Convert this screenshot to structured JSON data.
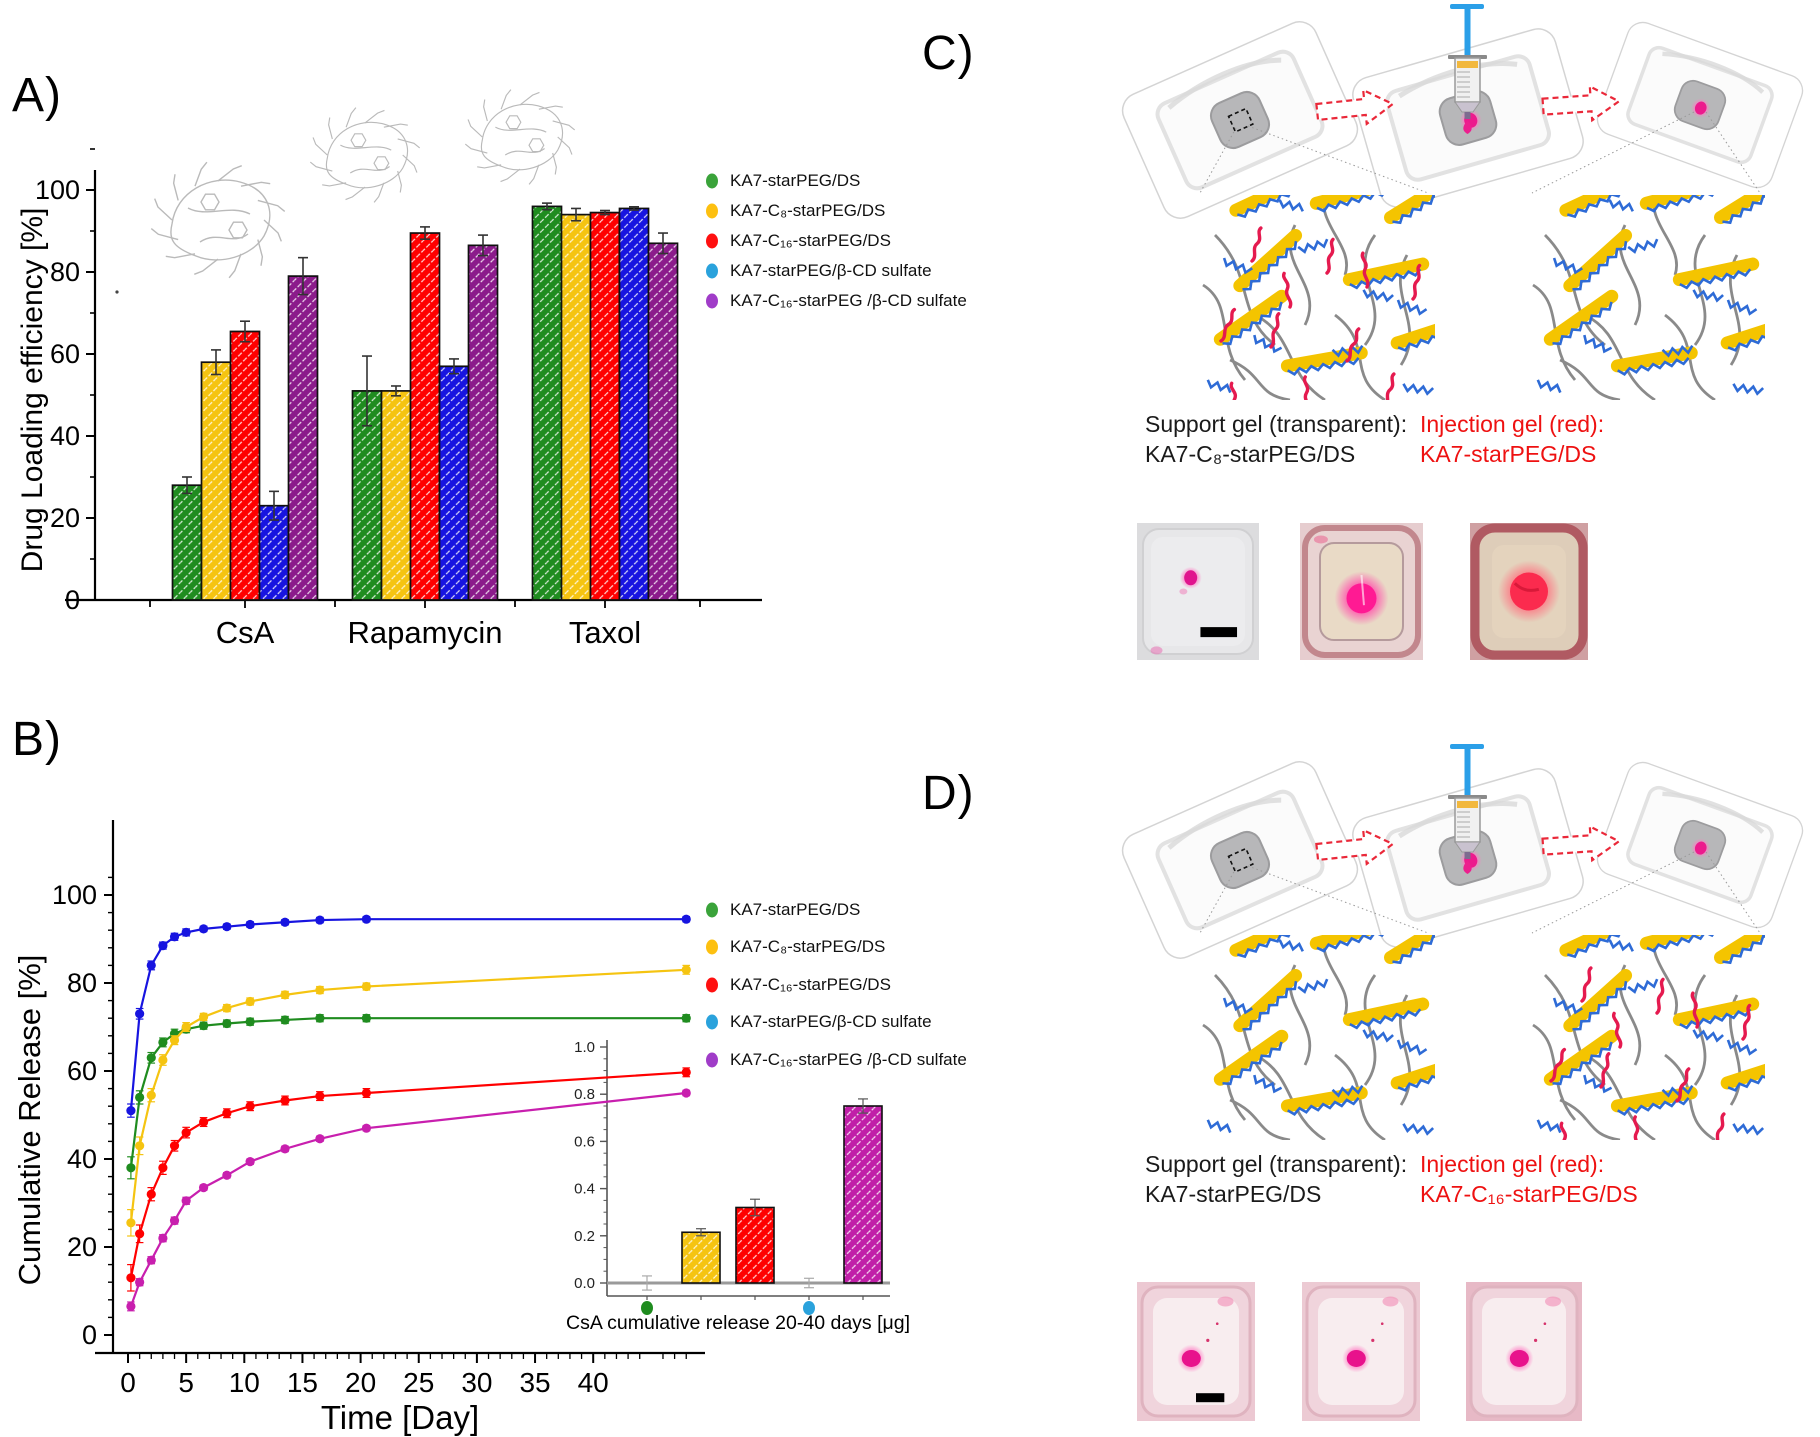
{
  "page": {
    "background": "#ffffff"
  },
  "panels": {
    "a": {
      "label": "A)"
    },
    "b": {
      "label": "B)"
    },
    "c": {
      "label": "C)",
      "support_gel_title": "Support gel (transparent):",
      "support_gel_name": "KA7-C₈-starPEG/DS",
      "injection_gel_title": "Injection gel (red):",
      "injection_gel_name": "KA7-starPEG/DS",
      "injection_text_color": "#ee1111"
    },
    "d": {
      "label": "D)",
      "support_gel_title": "Support gel (transparent):",
      "support_gel_name": "KA7-starPEG/DS",
      "injection_gel_title": "Injection gel (red):",
      "injection_gel_name": "KA7-C₁₆-starPEG/DS",
      "injection_text_color": "#ee1111"
    }
  },
  "chart_data": [
    {
      "id": "panelA",
      "type": "bar",
      "title": "",
      "xlabel": "",
      "ylabel": "Drug Loading efficiency [%]",
      "ylim": [
        0,
        112
      ],
      "yticks": [
        0,
        20,
        40,
        60,
        80,
        100
      ],
      "grid": false,
      "legend_position": "right",
      "categories": [
        "CsA",
        "Rapamycin",
        "Taxol"
      ],
      "series": [
        {
          "name": "KA7-starPEG/DS",
          "color": "#1f8c1f",
          "dot": "#3aa33a",
          "values": [
            28,
            51,
            96
          ],
          "errors": [
            2,
            8.5,
            0.8
          ]
        },
        {
          "name": "KA7-C₈-starPEG/DS",
          "color": "#f5c411",
          "dot": "#fdc010",
          "values": [
            58,
            51,
            94
          ],
          "errors": [
            3,
            1.2,
            1.5
          ]
        },
        {
          "name": "KA7-C₁₆-starPEG/DS",
          "color": "#ff0000",
          "dot": "#ff1010",
          "values": [
            65.5,
            89.5,
            94.5
          ],
          "errors": [
            2.5,
            1.5,
            0.5
          ]
        },
        {
          "name": "KA7-starPEG/β-CD sulfate",
          "color": "#1714e0",
          "dot": "#2aa2dc",
          "values": [
            23,
            57,
            95.5
          ],
          "errors": [
            3.5,
            1.8,
            0.4
          ]
        },
        {
          "name": "KA7-C₁₆-starPEG /β-CD sulfate",
          "color": "#8b1b8b",
          "dot": "#a03cc8",
          "values": [
            79,
            86.5,
            87
          ],
          "errors": [
            4.5,
            2.5,
            2.5
          ]
        }
      ]
    },
    {
      "id": "panelB",
      "type": "line",
      "xlabel": "Time [Day]",
      "ylabel": "Cumulative Release [%]",
      "xlim": [
        -1.5,
        49.5
      ],
      "ylim": [
        0,
        105
      ],
      "xticks": [
        0,
        5,
        10,
        15,
        20,
        25,
        30,
        35,
        40
      ],
      "yticks": [
        0,
        20,
        40,
        60,
        80,
        100
      ],
      "grid": false,
      "legend_position": "right",
      "x": [
        0.25,
        1,
        2,
        3,
        4,
        5,
        6.5,
        8.5,
        10.5,
        13.5,
        16.5,
        20.5,
        48
      ],
      "series": [
        {
          "name": "KA7-starPEG/DS",
          "color": "#1f8c1f",
          "dot": "#3aa33a",
          "values": [
            38,
            54,
            63,
            66.5,
            68.5,
            69.5,
            70.3,
            70.8,
            71.2,
            71.6,
            72,
            72,
            72
          ],
          "errors": [
            2.5,
            1.5,
            1.2,
            1,
            1,
            0.8,
            0.8,
            0.8,
            0.8,
            0.8,
            0.8,
            0.8,
            0.8
          ]
        },
        {
          "name": "KA7-C₈-starPEG/DS",
          "color": "#f5c411",
          "dot": "#fdc010",
          "values": [
            25.5,
            43,
            54.5,
            62.5,
            67,
            70,
            72.3,
            74.3,
            75.8,
            77.3,
            78.4,
            79.2,
            83
          ],
          "errors": [
            3,
            2,
            1.5,
            1.2,
            1,
            1,
            0.8,
            0.8,
            0.8,
            0.8,
            0.8,
            0.8,
            1
          ]
        },
        {
          "name": "KA7-C₁₆-starPEG/DS",
          "color": "#ff0000",
          "dot": "#ff1010",
          "values": [
            13,
            23,
            32,
            38,
            43,
            46,
            48.4,
            50.4,
            52,
            53.3,
            54.3,
            55,
            59.7
          ],
          "errors": [
            3,
            2,
            1.5,
            1.5,
            1.2,
            1.2,
            1,
            1,
            1,
            1,
            1,
            1,
            1
          ]
        },
        {
          "name": "KA7-starPEG/β-CD sulfate",
          "color": "#1714e0",
          "dot": "#2aa2dc",
          "values": [
            51,
            73,
            84,
            88.5,
            90.5,
            91.5,
            92.3,
            92.8,
            93.3,
            93.8,
            94.3,
            94.5,
            94.5
          ],
          "errors": [
            1.5,
            1.2,
            1,
            0.8,
            0.8,
            0.8,
            0.6,
            0.6,
            0.6,
            0.6,
            0.6,
            0.6,
            0.6
          ]
        },
        {
          "name": "KA7-C₁₆-starPEG /β-CD sulfate",
          "color": "#c81fae",
          "dot": "#a03cc8",
          "values": [
            6.5,
            12,
            17,
            22,
            26,
            30.5,
            33.5,
            36.3,
            39.4,
            42.3,
            44.6,
            47,
            55
          ],
          "errors": [
            1,
            0.8,
            0.8,
            0.8,
            0.8,
            0.8,
            0.6,
            0.6,
            0.6,
            0.6,
            0.6,
            0.6,
            0.6
          ]
        }
      ],
      "inset": {
        "type": "bar",
        "caption": "CsA cumulative release 20-40 days [μg]",
        "ylim": [
          -0.07,
          1.0
        ],
        "yticks": [
          "0.0",
          "0.2",
          "0.4",
          "0.6",
          "0.8",
          "1.0"
        ],
        "bars": [
          {
            "name": "KA7-starPEG/DS",
            "color": "#1f8c1f",
            "value": 0.0,
            "err": 0.03,
            "marker_below": true
          },
          {
            "name": "KA7-C₈-starPEG/DS",
            "color": "#f5c411",
            "value": 0.215,
            "err": 0.015,
            "marker_below": false
          },
          {
            "name": "KA7-C₁₆-starPEG/DS",
            "color": "#ff0000",
            "value": 0.32,
            "err": 0.035,
            "marker_below": false
          },
          {
            "name": "KA7-starPEG/β-CD sulfate",
            "color": "#2aa2dc",
            "value": 0.0,
            "err": 0.02,
            "marker_below": true
          },
          {
            "name": "KA7-C₁₆-starPEG /β-CD sulfate",
            "color": "#c01fa8",
            "value": 0.75,
            "err": 0.03,
            "marker_below": false
          }
        ]
      }
    }
  ]
}
